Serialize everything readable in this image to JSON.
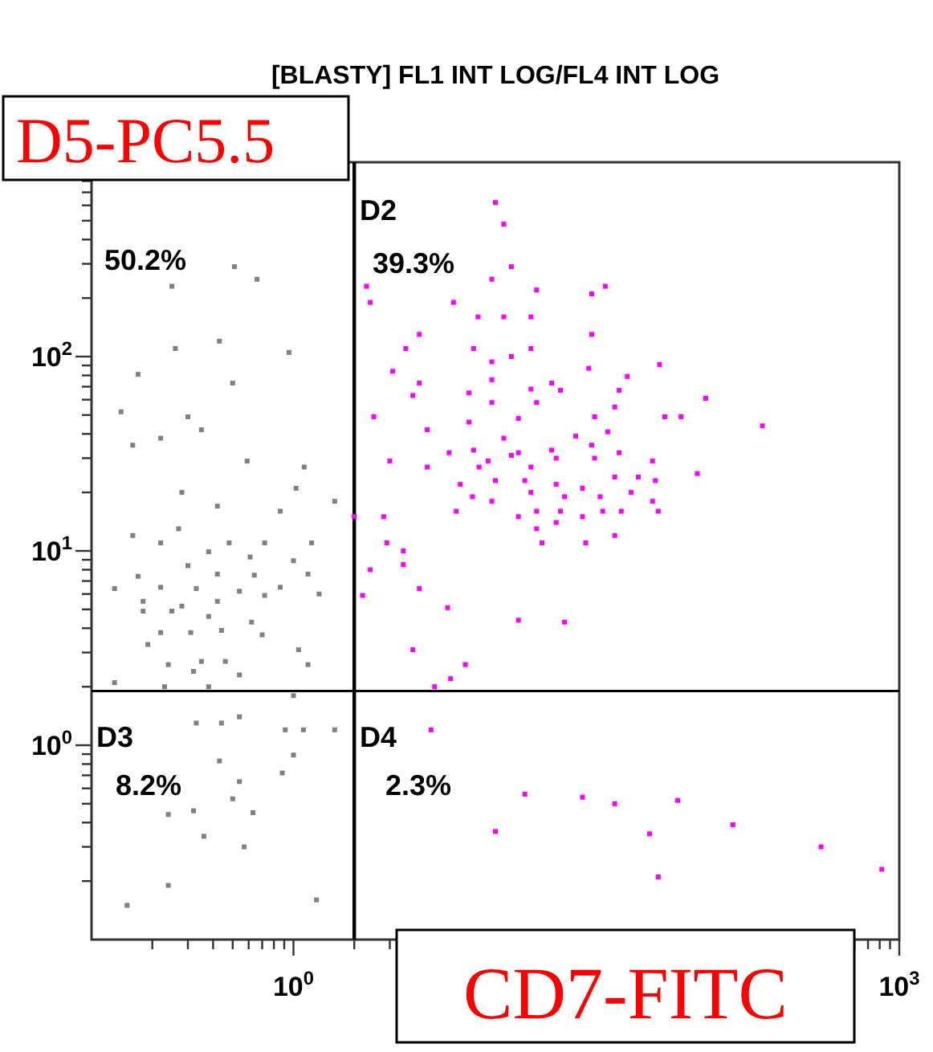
{
  "chart_data": {
    "type": "scatter",
    "title": "[BLASTY] FL1 INT LOG/FL4 INT LOG",
    "xlabel": "CD7-FITC",
    "ylabel": "D5-PC5.5",
    "log": "xy",
    "marker": "square",
    "xlim": [
      0.1,
      1000
    ],
    "ylim": [
      0.1,
      1000
    ],
    "xticks": [
      {
        "value": 0.2,
        "label": null
      },
      {
        "value": 0.3,
        "label": null
      },
      {
        "value": 0.4,
        "label": null
      },
      {
        "value": 0.5,
        "label": null
      },
      {
        "value": 0.6,
        "label": null
      },
      {
        "value": 0.7,
        "label": null
      },
      {
        "value": 0.8,
        "label": null
      },
      {
        "value": 0.9,
        "label": null
      },
      {
        "value": 1,
        "label": "10$^{0}$"
      },
      {
        "value": 2,
        "label": null
      },
      {
        "value": 3,
        "label": null
      },
      {
        "value": 4,
        "label": null
      },
      {
        "value": 5,
        "label": null
      },
      {
        "value": 6,
        "label": null
      },
      {
        "value": 7,
        "label": null
      },
      {
        "value": 8,
        "label": null
      },
      {
        "value": 9,
        "label": null
      },
      {
        "value": 10,
        "label": null
      },
      {
        "value": 100,
        "label": null
      },
      {
        "value": 200,
        "label": null
      },
      {
        "value": 300,
        "label": null
      },
      {
        "value": 400,
        "label": null
      },
      {
        "value": 500,
        "label": null
      },
      {
        "value": 600,
        "label": null
      },
      {
        "value": 700,
        "label": null
      },
      {
        "value": 800,
        "label": null
      },
      {
        "value": 900,
        "label": null
      },
      {
        "value": 1000,
        "label": "10$^{3}$"
      }
    ],
    "yticks": [
      {
        "value": 0.2,
        "label": null
      },
      {
        "value": 0.3,
        "label": null
      },
      {
        "value": 0.4,
        "label": null
      },
      {
        "value": 0.5,
        "label": null
      },
      {
        "value": 0.6,
        "label": null
      },
      {
        "value": 0.7,
        "label": null
      },
      {
        "value": 0.8,
        "label": null
      },
      {
        "value": 0.9,
        "label": null
      },
      {
        "value": 1,
        "label": "10$^{0}$"
      },
      {
        "value": 2,
        "label": null
      },
      {
        "value": 3,
        "label": null
      },
      {
        "value": 4,
        "label": null
      },
      {
        "value": 5,
        "label": null
      },
      {
        "value": 6,
        "label": null
      },
      {
        "value": 7,
        "label": null
      },
      {
        "value": 8,
        "label": null
      },
      {
        "value": 9,
        "label": null
      },
      {
        "value": 10,
        "label": "10$^{1}$"
      },
      {
        "value": 20,
        "label": null
      },
      {
        "value": 30,
        "label": null
      },
      {
        "value": 40,
        "label": null
      },
      {
        "value": 50,
        "label": null
      },
      {
        "value": 60,
        "label": null
      },
      {
        "value": 70,
        "label": null
      },
      {
        "value": 80,
        "label": null
      },
      {
        "value": 90,
        "label": null
      },
      {
        "value": 100,
        "label": "10$^{2}$"
      },
      {
        "value": 200,
        "label": null
      },
      {
        "value": 300,
        "label": null
      },
      {
        "value": 400,
        "label": null
      },
      {
        "value": 500,
        "label": null
      },
      {
        "value": 600,
        "label": null
      },
      {
        "value": 700,
        "label": null
      },
      {
        "value": 800,
        "label": null
      },
      {
        "value": 900,
        "label": null
      },
      {
        "value": 1000,
        "label": null
      }
    ],
    "ref_lines": [
      {
        "axis": "x",
        "value": 2,
        "label": null,
        "color": "#000000"
      },
      {
        "axis": "y",
        "value": 1.9,
        "label": null,
        "color": "#000000"
      }
    ],
    "annotations": [
      "50.2%",
      "D2",
      "39.3%",
      "D3",
      "8.2%",
      "D4",
      "2.3%"
    ],
    "series": [
      {
        "color": "#808080",
        "x": [
          0.25,
          0.51,
          0.66,
          0.26,
          0.43,
          0.95,
          0.17,
          0.5,
          0.14,
          0.3,
          0.35,
          0.22,
          0.16,
          0.59,
          1.13,
          0.28,
          1.03,
          1.6,
          0.86,
          0.42,
          0.27,
          0.16,
          0.22,
          0.48,
          0.72,
          1.23,
          1.0,
          0.61,
          0.38,
          0.3,
          0.17,
          0.13,
          0.42,
          0.64,
          1.18,
          0.86,
          0.54,
          0.33,
          0.22,
          0.18,
          0.28,
          0.42,
          0.72,
          1.34,
          0.25,
          0.38,
          0.62,
          0.18,
          0.22,
          0.31,
          0.44,
          0.7,
          1.06,
          0.19,
          0.35,
          0.24,
          0.46,
          1.18,
          0.32,
          0.54,
          0.13,
          0.23,
          0.38,
          0.33,
          0.44,
          0.54,
          0.91,
          1.12,
          1.6,
          1.0,
          0.43,
          0.54,
          0.5,
          0.32,
          0.24,
          0.36,
          0.63,
          1.0,
          0.88,
          0.24,
          0.15,
          1.3,
          0.57
        ],
        "values": [
          230,
          290,
          250,
          110,
          120,
          105,
          81,
          73,
          52,
          49,
          42,
          38,
          35,
          29,
          27,
          20,
          21,
          18,
          16,
          17,
          13,
          12,
          11,
          11,
          11,
          11,
          8.9,
          9.3,
          9.9,
          8.4,
          7.4,
          6.4,
          7.6,
          7.5,
          7.6,
          6.5,
          6.2,
          6.4,
          6.5,
          5.5,
          5.2,
          5.5,
          5.9,
          6.0,
          4.9,
          4.6,
          4.3,
          4.9,
          3.8,
          3.8,
          3.9,
          3.7,
          3.1,
          3.3,
          2.7,
          2.6,
          2.7,
          2.6,
          2.4,
          2.3,
          2.1,
          2.0,
          2.0,
          1.3,
          1.3,
          1.4,
          1.2,
          1.2,
          1.2,
          1.8,
          0.83,
          0.65,
          0.53,
          0.46,
          0.44,
          0.34,
          0.45,
          0.89,
          0.72,
          0.19,
          0.15,
          0.16,
          0.3
        ]
      },
      {
        "color": "#ff00ff",
        "x": [
          10,
          11,
          12,
          2.3,
          2.4,
          9.6,
          16,
          30,
          35,
          6.2,
          8.2,
          11,
          15,
          30,
          4.2,
          3.6,
          7.8,
          15,
          12,
          9.6,
          3.1,
          4.2,
          3.9,
          9.6,
          15,
          19,
          29,
          45,
          65,
          41,
          39,
          7.4,
          9.6,
          13,
          16,
          21,
          31,
          110,
          83,
          69,
          210,
          2.5,
          4.6,
          7.4,
          11,
          13,
          19,
          25,
          30,
          36,
          5.9,
          7.8,
          9.2,
          12,
          15,
          20,
          31,
          41,
          60,
          100,
          3.0,
          4.6,
          6.7,
          8.3,
          10,
          14,
          20,
          27,
          39,
          51,
          62,
          15,
          22,
          33,
          47,
          60,
          7.7,
          9.6,
          16,
          21,
          27,
          34,
          42,
          64,
          6.4,
          13,
          16,
          20,
          28,
          39,
          17,
          2.0,
          2.8,
          2.9,
          3.5,
          3.5,
          2.4,
          4.2,
          2.2,
          5.8,
          13,
          22,
          3.9,
          7.1,
          6.0,
          5.0,
          4.8,
          14,
          10,
          27,
          39,
          80,
          58,
          150,
          64,
          410,
          820
        ],
        "values": [
          620,
          480,
          290,
          230,
          190,
          250,
          220,
          210,
          230,
          190,
          160,
          160,
          160,
          130,
          130,
          110,
          110,
          110,
          100,
          94,
          84,
          73,
          63,
          76,
          68,
          73,
          87,
          79,
          91,
          67,
          55,
          65,
          58,
          48,
          58,
          67,
          49,
          61,
          49,
          49,
          44,
          49,
          42,
          46,
          38,
          32,
          33,
          39,
          35,
          41,
          32,
          33,
          29,
          31,
          27,
          30,
          30,
          32,
          29,
          25,
          29,
          27,
          22,
          27,
          23,
          23,
          22,
          21,
          24,
          24,
          23,
          20,
          19,
          19,
          20,
          18,
          19,
          18,
          16,
          16,
          15,
          16,
          16,
          16,
          16,
          15,
          13,
          14,
          11,
          12,
          11,
          15,
          15,
          11,
          10,
          8.5,
          8.0,
          6.4,
          5.9,
          5.1,
          4.4,
          4.3,
          3.1,
          2.6,
          2.2,
          2.0,
          1.2,
          0.56,
          0.36,
          0.54,
          0.5,
          0.52,
          0.35,
          0.39,
          0.21,
          0.3,
          0.23
        ]
      }
    ]
  }
}
